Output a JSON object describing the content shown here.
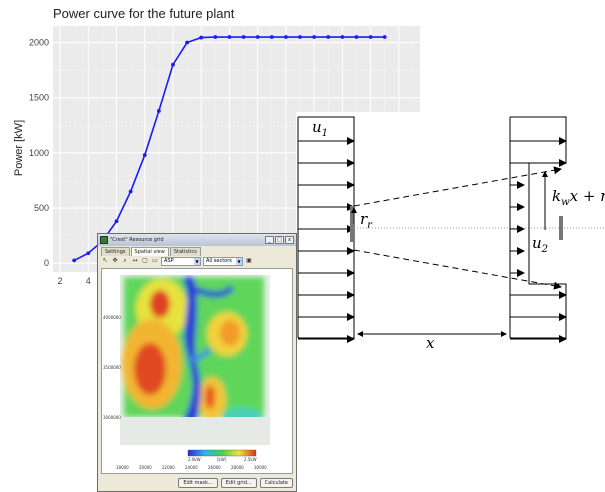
{
  "chart_data": {
    "type": "line",
    "title": "Power curve for the future plant",
    "xlabel": "",
    "ylabel": "Power [kW]",
    "xlim": [
      1.5,
      27.5
    ],
    "ylim": [
      -80,
      2150
    ],
    "x_ticks_visible": [
      "2",
      "4"
    ],
    "y_ticks": [
      "0",
      "500",
      "1000",
      "1500",
      "2000"
    ],
    "y_tick_values": [
      0,
      500,
      1000,
      1500,
      2000
    ],
    "grid": true,
    "series": [
      {
        "color": "#1a1aff",
        "x": [
          3,
          4,
          5,
          6,
          7,
          8,
          9,
          10,
          11,
          12,
          13,
          14,
          15,
          16,
          17,
          18,
          19,
          20,
          21,
          22,
          23,
          24,
          25
        ],
        "y": [
          25,
          90,
          200,
          380,
          650,
          980,
          1380,
          1800,
          2000,
          2045,
          2050,
          2050,
          2050,
          2050,
          2050,
          2050,
          2050,
          2050,
          2050,
          2050,
          2050,
          2050,
          2050
        ]
      }
    ]
  },
  "wake": {
    "u1": "u",
    "u1_sub": "1",
    "u2": "u",
    "u2_sub": "2",
    "rr": "r",
    "rr_sub": "r",
    "kw_k": "k",
    "kw_sub": "w",
    "kw_rest": "x + r",
    "x": "x"
  },
  "window": {
    "title": "\"Crest\" Resource grid",
    "controls": [
      "_",
      "□",
      "x"
    ],
    "tabs": [
      "Settings",
      "Spatial view",
      "Statistics"
    ],
    "active_tab": "Spatial view",
    "select_param": "ASP",
    "select_sectors": "All sectors",
    "buttons": [
      "Edit mask...",
      "Edit grid...",
      "Calculate"
    ],
    "legend_min": "2.0kW",
    "legend_unit": "[kW]",
    "legend_max": "2.5kW",
    "y_ticks": [
      "4000000",
      "3500000",
      "3000000"
    ],
    "x_ticks": [
      "18000",
      "20000",
      "22000",
      "24000",
      "26000",
      "28000",
      "30000"
    ]
  }
}
